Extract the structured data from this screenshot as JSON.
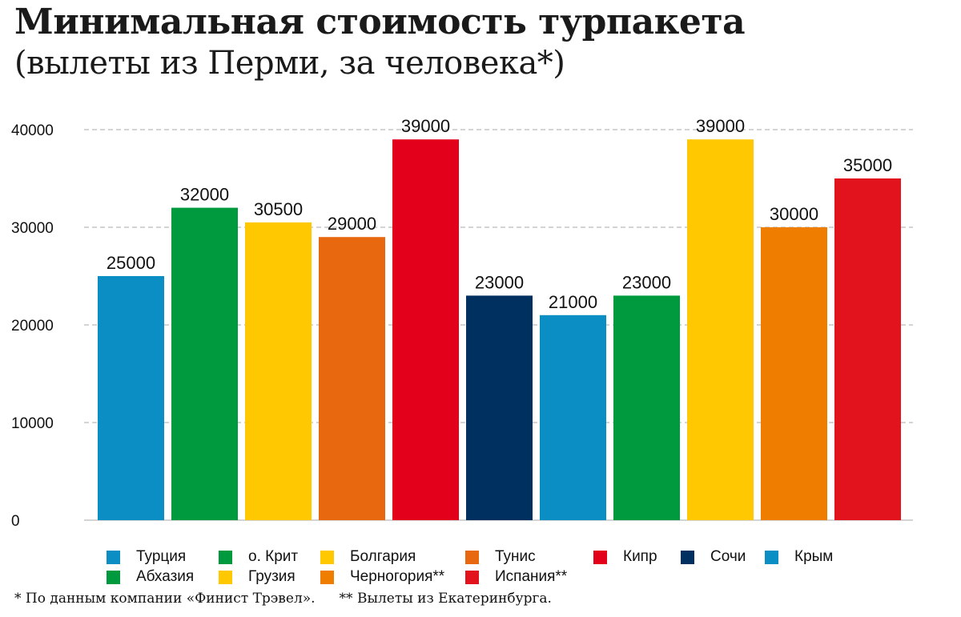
{
  "chart_data": {
    "type": "bar",
    "title": "Минимальная стоимость турпакета",
    "subtitle": "(вылеты из Перми, за человека*)",
    "categories": [
      "Турция",
      "о. Крит",
      "Болгария",
      "Тунис",
      "Кипр",
      "Сочи",
      "Крым",
      "Абхазия",
      "Грузия",
      "Черногория**",
      "Испания**"
    ],
    "values": [
      25000,
      32000,
      30500,
      29000,
      39000,
      23000,
      21000,
      23000,
      39000,
      30000,
      35000
    ],
    "colors": [
      "#0a8ec4",
      "#009a3e",
      "#ffc800",
      "#e8680f",
      "#e2001a",
      "#00305f",
      "#0a8ec4",
      "#009a3e",
      "#ffc800",
      "#ee7d00",
      "#e2131d"
    ],
    "ylim": [
      0,
      40000
    ],
    "yticks": [
      "0",
      "10000",
      "20000",
      "30000",
      "40000"
    ],
    "xlabel": "",
    "ylabel": "",
    "grid": true,
    "legend_placement": "bottom"
  },
  "footnotes": [
    "* По данным компании «Финист Трэвел».",
    "** Вылеты из Екатеринбурга."
  ]
}
